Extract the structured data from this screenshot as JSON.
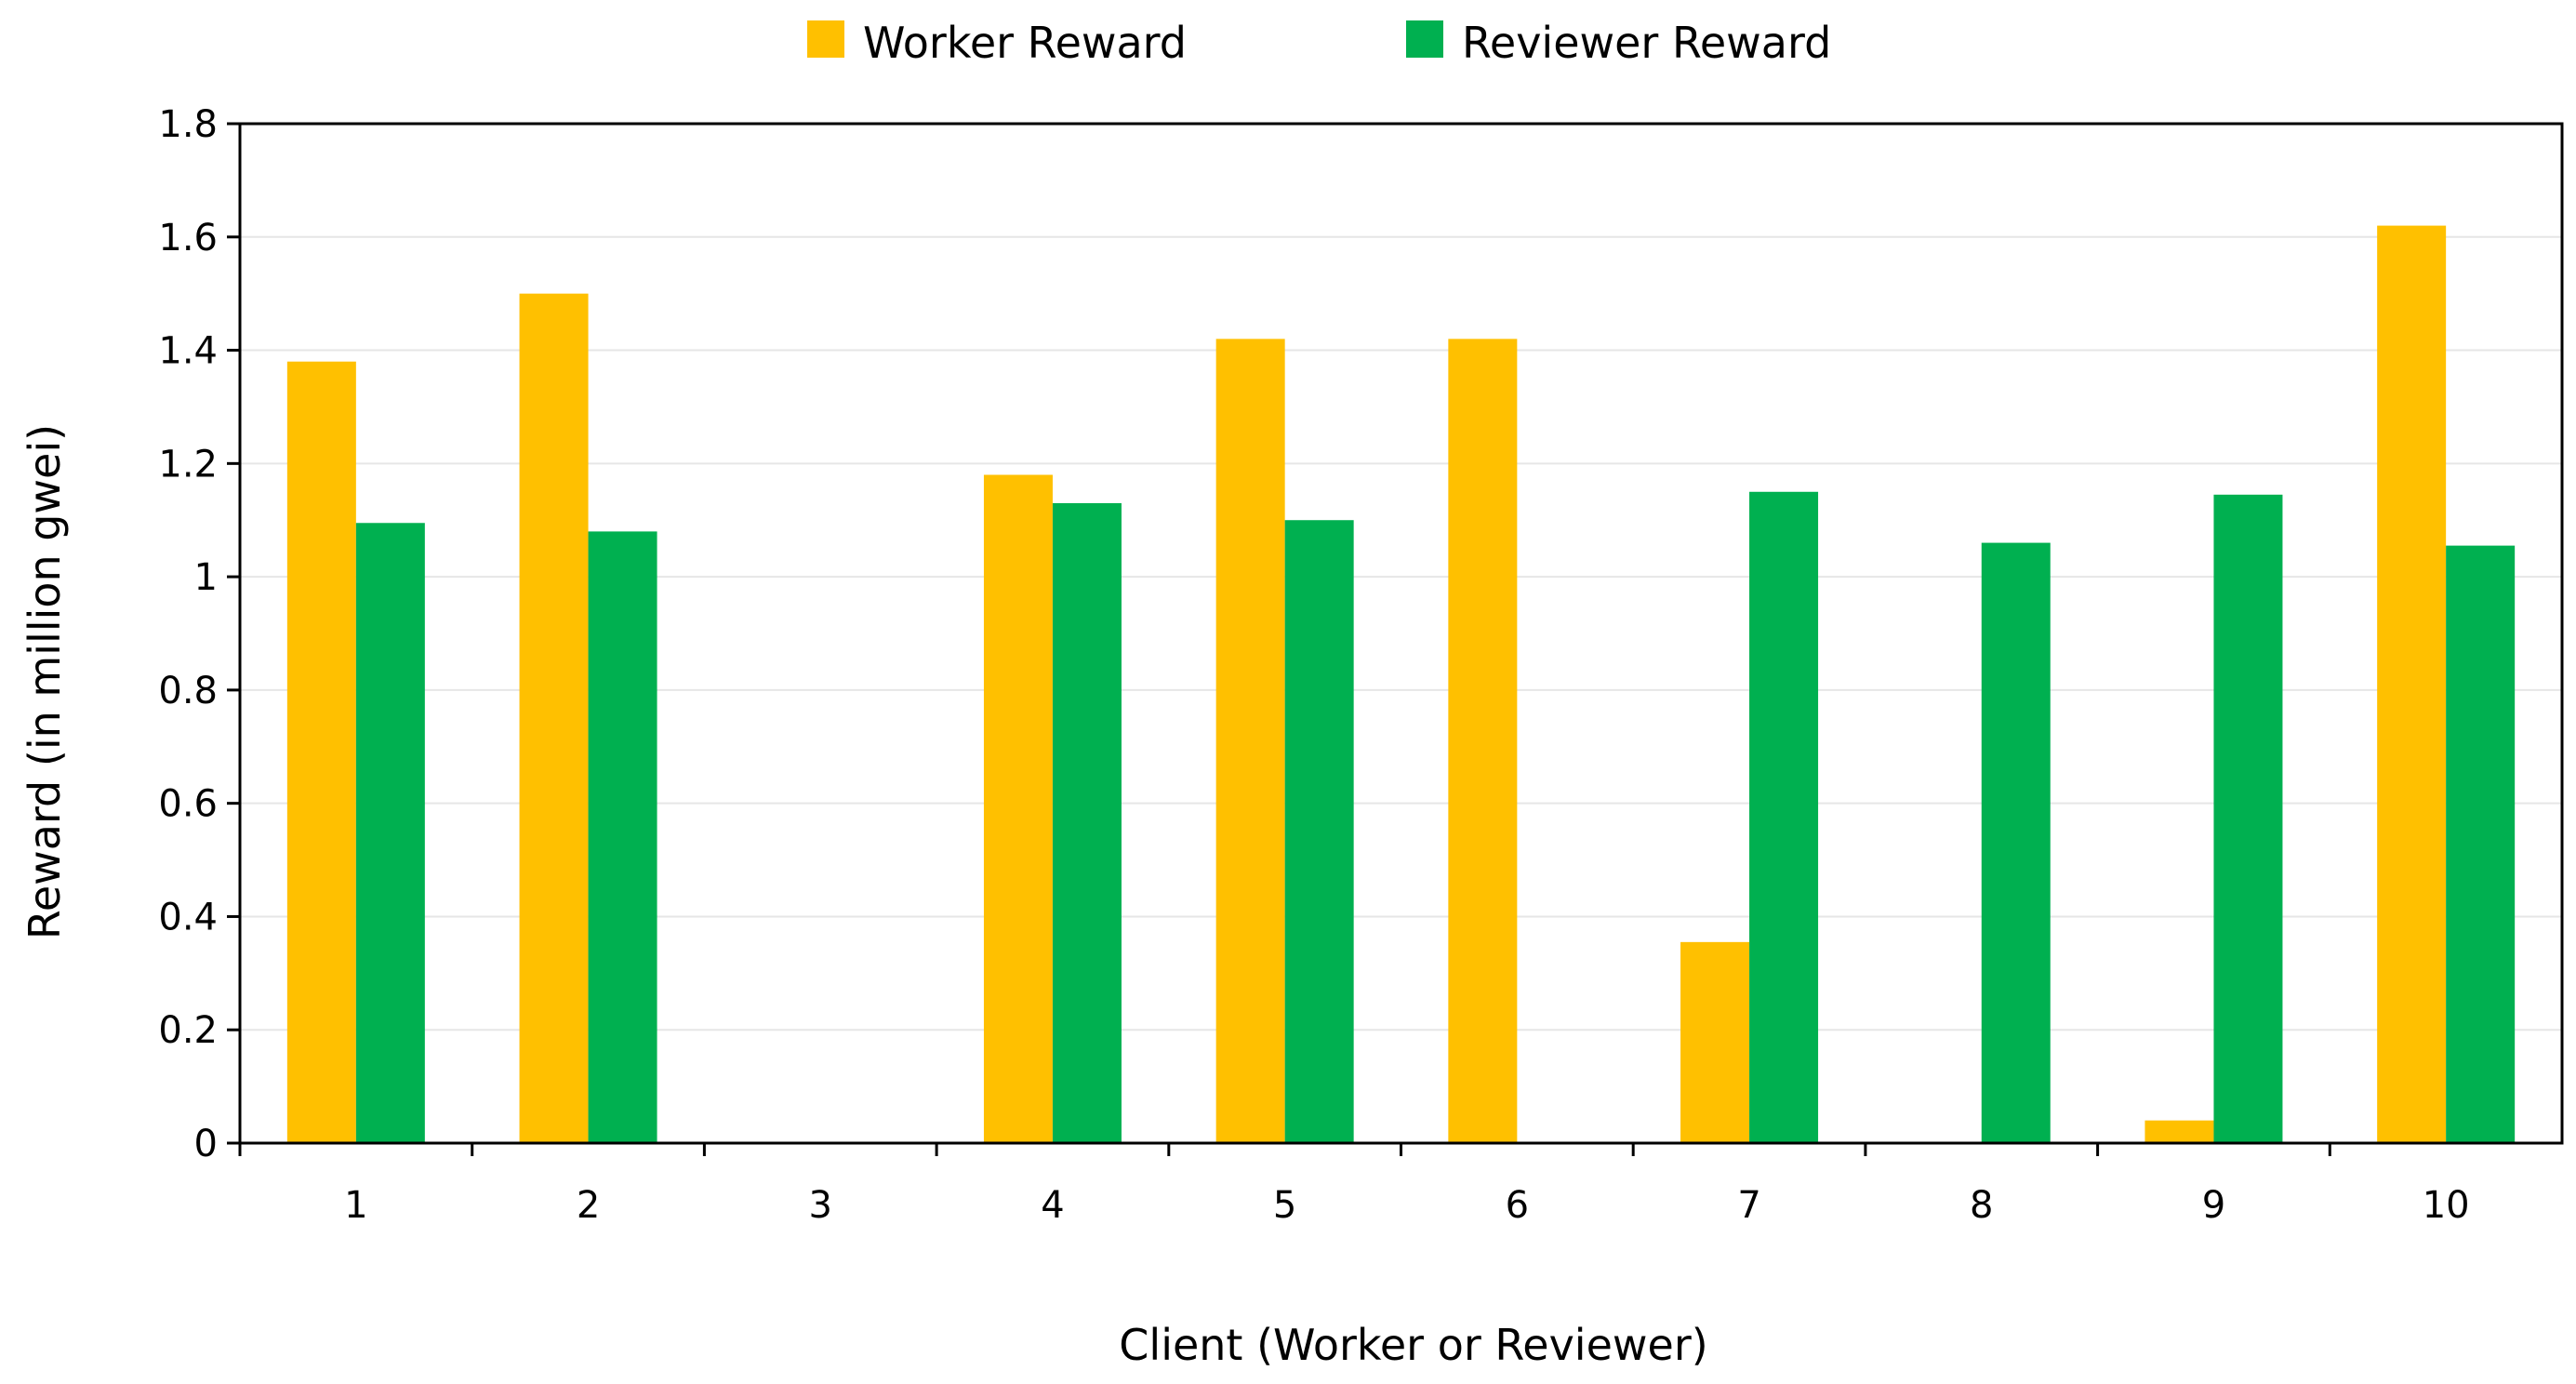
{
  "chart_data": {
    "type": "bar",
    "title": "",
    "xlabel": "Client (Worker or Reviewer)",
    "ylabel": "Reward (in million gwei)",
    "categories": [
      "1",
      "2",
      "3",
      "4",
      "5",
      "6",
      "7",
      "8",
      "9",
      "10"
    ],
    "ylim": [
      0,
      1.8
    ],
    "yticks": [
      "0",
      "0.2",
      "0.4",
      "0.6",
      "0.8",
      "1",
      "1.2",
      "1.4",
      "1.6",
      "1.8"
    ],
    "ytick_values": [
      0,
      0.2,
      0.4,
      0.6,
      0.8,
      1.0,
      1.2,
      1.4,
      1.6,
      1.8
    ],
    "grid": true,
    "legend_position": "top",
    "series": [
      {
        "name": "Worker Reward",
        "color": "#FFC000",
        "values": [
          1.38,
          1.5,
          0,
          1.18,
          1.42,
          1.42,
          0.355,
          0,
          0.04,
          1.62
        ]
      },
      {
        "name": "Reviewer Reward",
        "color": "#00B050",
        "values": [
          1.095,
          1.08,
          0,
          1.13,
          1.1,
          0,
          1.15,
          1.06,
          1.145,
          1.055
        ]
      }
    ]
  }
}
